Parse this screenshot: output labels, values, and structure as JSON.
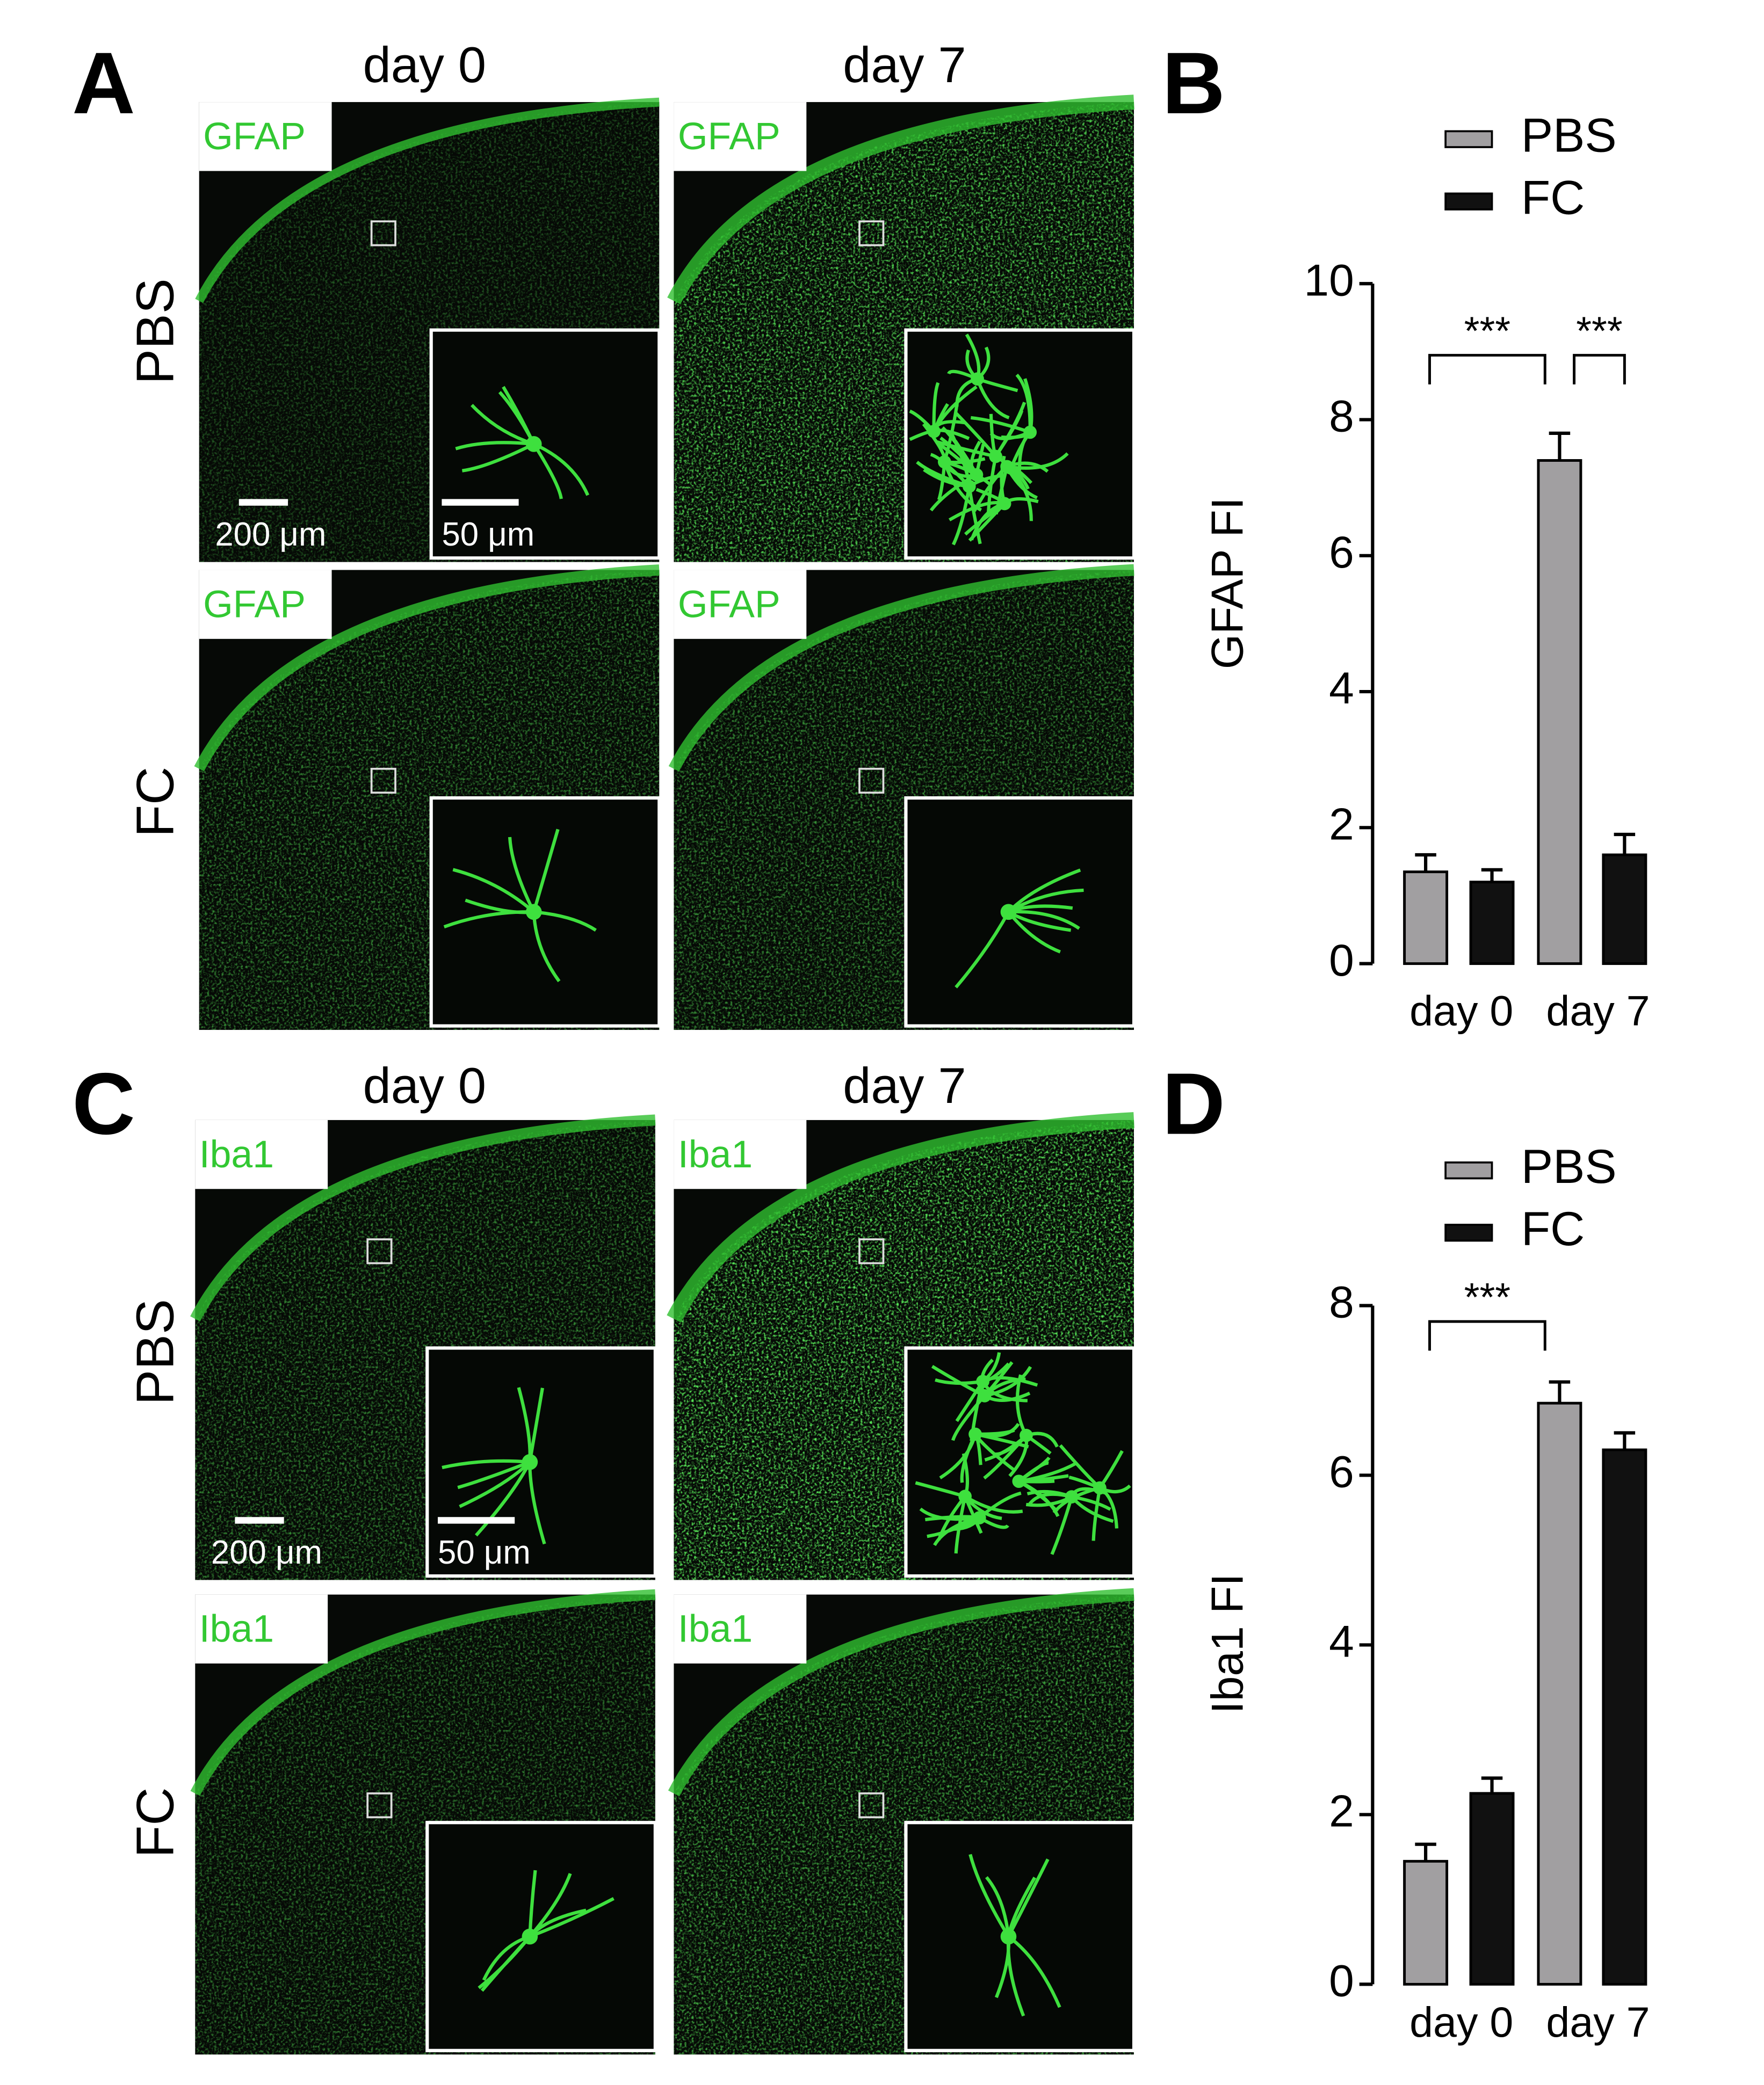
{
  "panel_labels": [
    "A",
    "B",
    "C",
    "D"
  ],
  "image_panels": [
    {
      "columns": [
        "day 0",
        "day 7"
      ],
      "rows": [
        "PBS",
        "FC"
      ],
      "image_labels": [
        "GFAP",
        "GFAP",
        "GFAP",
        "GFAP"
      ],
      "scale_bars": [
        "200 μm",
        "50 μm"
      ]
    },
    {
      "columns": [
        "day 0",
        "day 7"
      ],
      "rows": [
        "PBS",
        "FC"
      ],
      "image_labels": [
        "Iba1",
        "Iba1",
        "Iba1",
        "Iba1"
      ],
      "scale_bars": [
        "200 μm",
        "50 μm"
      ]
    }
  ],
  "chart_data": [
    {
      "type": "bar",
      "ylabel": "GFAP FI",
      "categories": [
        "day 0",
        "day 7"
      ],
      "series": [
        {
          "name": "PBS",
          "color": "#a19fa1",
          "values": [
            1.35,
            7.4
          ],
          "errors": [
            0.25,
            0.4
          ]
        },
        {
          "name": "FC",
          "color": "#111111",
          "values": [
            1.2,
            1.6
          ],
          "errors": [
            0.18,
            0.3
          ]
        }
      ],
      "ylim": [
        0,
        10
      ],
      "yticks": [
        0,
        2,
        4,
        6,
        8,
        10
      ],
      "annotations": [
        "***",
        "***"
      ]
    },
    {
      "type": "bar",
      "ylabel": "Iba1 FI",
      "categories": [
        "day 0",
        "day 7"
      ],
      "series": [
        {
          "name": "PBS",
          "color": "#a19fa1",
          "values": [
            1.45,
            6.85
          ],
          "errors": [
            0.2,
            0.25
          ]
        },
        {
          "name": "FC",
          "color": "#111111",
          "values": [
            2.25,
            6.3
          ],
          "errors": [
            0.18,
            0.2
          ]
        }
      ],
      "ylim": [
        0,
        8
      ],
      "yticks": [
        0,
        2,
        4,
        6,
        8
      ],
      "annotations": [
        "***"
      ]
    }
  ]
}
